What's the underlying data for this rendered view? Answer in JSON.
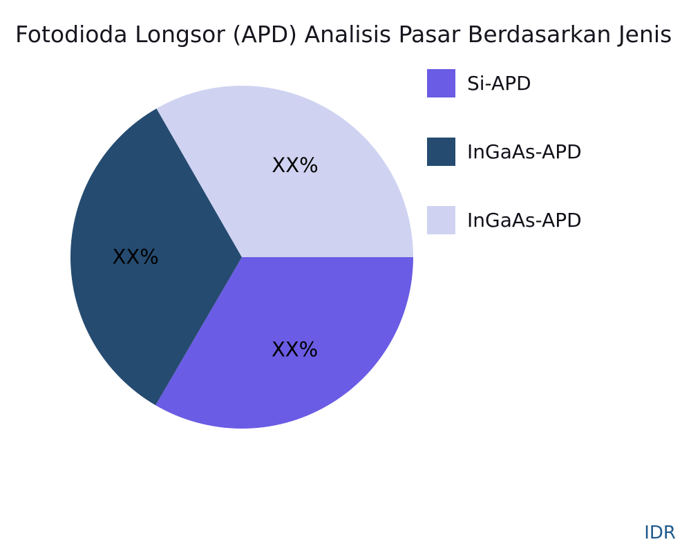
{
  "chart_data": {
    "type": "pie",
    "title": "Fotodioda Longsor (APD) Analisis Pasar Berdasarkan Jenis",
    "start_angle_deg": 0,
    "direction": "clockwise",
    "legend_position": "right",
    "slices": [
      {
        "name": "Si-APD",
        "value": 33.4,
        "display_label": "XX%",
        "color": "#6a5ce4"
      },
      {
        "name": "InGaAs-APD",
        "value": 33.3,
        "display_label": "XX%",
        "color": "#254b70"
      },
      {
        "name": "InGaAs-APD",
        "value": 33.3,
        "display_label": "XX%",
        "color": "#cfd3f1"
      }
    ]
  },
  "footer": {
    "currency_label": "IDR"
  }
}
